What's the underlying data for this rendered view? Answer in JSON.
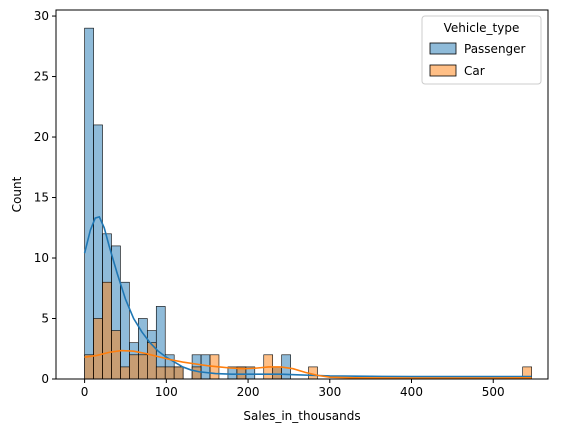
{
  "chart_data": {
    "type": "bar",
    "title": "",
    "xlabel": "Sales_in_thousands",
    "ylabel": "Count",
    "xlim": [
      -35,
      567
    ],
    "ylim": [
      0,
      30.5
    ],
    "xticks": [
      0,
      100,
      200,
      300,
      400,
      500
    ],
    "yticks": [
      0,
      5,
      10,
      15,
      20,
      25,
      30
    ],
    "grid": false,
    "bin_width": 10.96,
    "legend": {
      "title": "Vehicle_type",
      "placement": "top-right"
    },
    "series": [
      {
        "name": "Passenger",
        "color": "#1f77b4",
        "bins": [
          {
            "x0": 0,
            "count": 29
          },
          {
            "x0": 10.96,
            "count": 21
          },
          {
            "x0": 21.92,
            "count": 12
          },
          {
            "x0": 32.88,
            "count": 11
          },
          {
            "x0": 43.84,
            "count": 8
          },
          {
            "x0": 54.8,
            "count": 3
          },
          {
            "x0": 65.76,
            "count": 5
          },
          {
            "x0": 76.72,
            "count": 4
          },
          {
            "x0": 87.68,
            "count": 6
          },
          {
            "x0": 98.64,
            "count": 2
          },
          {
            "x0": 109.6,
            "count": 1
          },
          {
            "x0": 131.52,
            "count": 2
          },
          {
            "x0": 142.48,
            "count": 2
          },
          {
            "x0": 175.36,
            "count": 1
          },
          {
            "x0": 186.32,
            "count": 1
          },
          {
            "x0": 197.28,
            "count": 1
          },
          {
            "x0": 230.16,
            "count": 1
          },
          {
            "x0": 241.12,
            "count": 2
          }
        ],
        "kde": [
          [
            0,
            10.4
          ],
          [
            7,
            12.3
          ],
          [
            13,
            13.3
          ],
          [
            18,
            13.4
          ],
          [
            24,
            12.5
          ],
          [
            30,
            11.0
          ],
          [
            40,
            8.7
          ],
          [
            50,
            6.6
          ],
          [
            60,
            5.0
          ],
          [
            70,
            3.9
          ],
          [
            80,
            3.0
          ],
          [
            90,
            2.3
          ],
          [
            100,
            1.8
          ],
          [
            110,
            1.4
          ],
          [
            120,
            1.0
          ],
          [
            130,
            0.75
          ],
          [
            140,
            0.6
          ],
          [
            160,
            0.45
          ],
          [
            180,
            0.4
          ],
          [
            200,
            0.4
          ],
          [
            220,
            0.4
          ],
          [
            240,
            0.4
          ],
          [
            260,
            0.35
          ],
          [
            280,
            0.3
          ],
          [
            300,
            0.25
          ],
          [
            350,
            0.22
          ],
          [
            400,
            0.2
          ],
          [
            450,
            0.2
          ],
          [
            500,
            0.2
          ],
          [
            547,
            0.2
          ]
        ]
      },
      {
        "name": "Car",
        "color": "#ff7f0e",
        "bins": [
          {
            "x0": 0,
            "count": 2
          },
          {
            "x0": 10.96,
            "count": 5
          },
          {
            "x0": 21.92,
            "count": 8
          },
          {
            "x0": 32.88,
            "count": 4
          },
          {
            "x0": 43.84,
            "count": 1
          },
          {
            "x0": 54.8,
            "count": 2
          },
          {
            "x0": 65.76,
            "count": 2
          },
          {
            "x0": 76.72,
            "count": 3
          },
          {
            "x0": 87.68,
            "count": 1
          },
          {
            "x0": 98.64,
            "count": 1
          },
          {
            "x0": 109.6,
            "count": 1
          },
          {
            "x0": 131.52,
            "count": 1
          },
          {
            "x0": 153.44,
            "count": 2
          },
          {
            "x0": 186.32,
            "count": 1
          },
          {
            "x0": 219.2,
            "count": 2
          },
          {
            "x0": 230.16,
            "count": 1
          },
          {
            "x0": 274,
            "count": 1
          },
          {
            "x0": 536.04,
            "count": 1
          }
        ],
        "kde": [
          [
            0,
            1.8
          ],
          [
            15,
            1.95
          ],
          [
            30,
            2.2
          ],
          [
            45,
            2.35
          ],
          [
            60,
            2.3
          ],
          [
            75,
            2.1
          ],
          [
            90,
            1.85
          ],
          [
            105,
            1.6
          ],
          [
            120,
            1.4
          ],
          [
            135,
            1.25
          ],
          [
            150,
            1.1
          ],
          [
            165,
            1.0
          ],
          [
            180,
            0.9
          ],
          [
            195,
            0.85
          ],
          [
            210,
            0.9
          ],
          [
            225,
            1.0
          ],
          [
            240,
            1.0
          ],
          [
            255,
            0.85
          ],
          [
            270,
            0.55
          ],
          [
            285,
            0.3
          ],
          [
            300,
            0.15
          ],
          [
            330,
            0.1
          ],
          [
            400,
            0.08
          ],
          [
            450,
            0.08
          ],
          [
            500,
            0.08
          ],
          [
            547,
            0.1
          ]
        ]
      }
    ]
  }
}
